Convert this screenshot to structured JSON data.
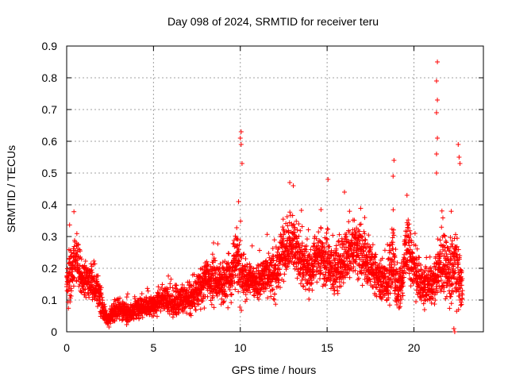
{
  "chart_data": {
    "type": "scatter",
    "title": "Day 098 of 2024, SRMTID for receiver teru",
    "xlabel": "GPS time / hours",
    "ylabel": "SRMTID / TECUs",
    "xlim": [
      0,
      24
    ],
    "ylim": [
      0,
      0.9
    ],
    "grid": true,
    "marker": "+",
    "marker_color": "#ff0000",
    "x_ticks": [
      0,
      5,
      10,
      15,
      20
    ],
    "x_tick_labels": [
      "0",
      "5",
      "10",
      "15",
      "20"
    ],
    "y_ticks": [
      0,
      0.1,
      0.2,
      0.3,
      0.4,
      0.5,
      0.6,
      0.7,
      0.8,
      0.9
    ],
    "y_tick_labels": [
      "0",
      "0.1",
      "0.2",
      "0.3",
      "0.4",
      "0.5",
      "0.6",
      "0.7",
      "0.8",
      "0.9"
    ],
    "profile": {
      "hours": [
        0,
        0.3,
        0.6,
        0.9,
        1.2,
        1.5,
        1.8,
        2.0,
        2.2,
        2.4,
        2.7,
        3.0,
        3.5,
        4.0,
        4.5,
        5.0,
        5.5,
        6.0,
        6.5,
        7.0,
        7.5,
        8.0,
        8.5,
        9.0,
        9.5,
        9.8,
        10.0,
        10.3,
        10.6,
        11.0,
        11.5,
        12.0,
        12.5,
        13.0,
        13.5,
        14.0,
        14.5,
        15.0,
        15.3,
        15.6,
        16.0,
        16.5,
        17.0,
        17.5,
        18.0,
        18.5,
        18.8,
        19.0,
        19.3,
        19.6,
        20.0,
        20.5,
        21.0,
        21.3,
        21.6,
        22.0,
        22.4,
        22.8
      ],
      "median": [
        0.15,
        0.19,
        0.22,
        0.17,
        0.16,
        0.15,
        0.14,
        0.09,
        0.05,
        0.04,
        0.06,
        0.07,
        0.06,
        0.07,
        0.08,
        0.08,
        0.11,
        0.09,
        0.1,
        0.1,
        0.13,
        0.16,
        0.16,
        0.15,
        0.18,
        0.25,
        0.2,
        0.15,
        0.16,
        0.16,
        0.18,
        0.18,
        0.25,
        0.28,
        0.23,
        0.19,
        0.24,
        0.22,
        0.19,
        0.2,
        0.23,
        0.26,
        0.24,
        0.21,
        0.16,
        0.15,
        0.25,
        0.13,
        0.15,
        0.28,
        0.2,
        0.14,
        0.15,
        0.18,
        0.22,
        0.18,
        0.22,
        0.12
      ],
      "spread": [
        0.08,
        0.08,
        0.08,
        0.06,
        0.05,
        0.05,
        0.05,
        0.05,
        0.02,
        0.02,
        0.03,
        0.03,
        0.03,
        0.03,
        0.03,
        0.03,
        0.04,
        0.04,
        0.04,
        0.05,
        0.05,
        0.06,
        0.06,
        0.06,
        0.07,
        0.1,
        0.1,
        0.06,
        0.05,
        0.05,
        0.06,
        0.07,
        0.08,
        0.08,
        0.08,
        0.07,
        0.08,
        0.08,
        0.07,
        0.07,
        0.08,
        0.08,
        0.08,
        0.07,
        0.06,
        0.06,
        0.12,
        0.06,
        0.06,
        0.1,
        0.07,
        0.06,
        0.06,
        0.08,
        0.12,
        0.08,
        0.12,
        0.06
      ]
    },
    "peaks": [
      {
        "x": 10.05,
        "y": 0.63
      },
      {
        "x": 10.0,
        "y": 0.61
      },
      {
        "x": 10.05,
        "y": 0.59
      },
      {
        "x": 10.1,
        "y": 0.53
      },
      {
        "x": 15.05,
        "y": 0.48
      },
      {
        "x": 16.0,
        "y": 0.44
      },
      {
        "x": 18.85,
        "y": 0.54
      },
      {
        "x": 18.8,
        "y": 0.49
      },
      {
        "x": 21.35,
        "y": 0.85
      },
      {
        "x": 21.3,
        "y": 0.79
      },
      {
        "x": 21.35,
        "y": 0.73
      },
      {
        "x": 21.3,
        "y": 0.69
      },
      {
        "x": 21.35,
        "y": 0.61
      },
      {
        "x": 21.3,
        "y": 0.56
      },
      {
        "x": 21.3,
        "y": 0.5
      },
      {
        "x": 22.55,
        "y": 0.59
      },
      {
        "x": 22.6,
        "y": 0.55
      },
      {
        "x": 22.65,
        "y": 0.53
      },
      {
        "x": 12.85,
        "y": 0.47
      },
      {
        "x": 13.05,
        "y": 0.46
      },
      {
        "x": 19.6,
        "y": 0.43
      },
      {
        "x": 22.3,
        "y": 0.01
      },
      {
        "x": 22.35,
        "y": 0.0
      },
      {
        "x": 9.9,
        "y": 0.41
      }
    ]
  }
}
